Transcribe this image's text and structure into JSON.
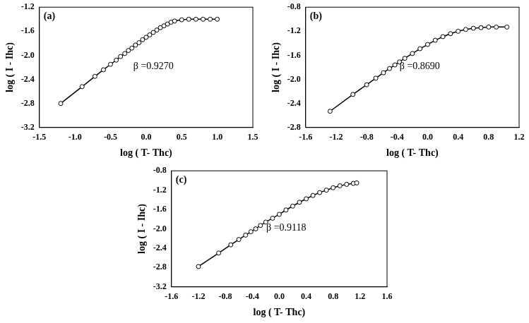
{
  "chart_data": [
    {
      "type": "scatter",
      "title": "(a)",
      "annotation": "β =0.9270",
      "x_label": "log ( T- Thc)",
      "y_label": "log ( I - Ihc)",
      "x": [
        -1.2,
        -0.9,
        -0.72,
        -0.6,
        -0.5,
        -0.42,
        -0.36,
        -0.3,
        -0.25,
        -0.2,
        -0.15,
        -0.1,
        -0.05,
        0.0,
        0.05,
        0.1,
        0.15,
        0.2,
        0.25,
        0.3,
        0.35,
        0.4,
        0.5,
        0.6,
        0.7,
        0.8,
        0.9,
        1.0
      ],
      "values": [
        -2.8,
        -2.52,
        -2.35,
        -2.24,
        -2.15,
        -2.08,
        -2.02,
        -1.97,
        -1.92,
        -1.88,
        -1.83,
        -1.79,
        -1.74,
        -1.7,
        -1.66,
        -1.62,
        -1.58,
        -1.54,
        -1.51,
        -1.48,
        -1.45,
        -1.43,
        -1.41,
        -1.4,
        -1.4,
        -1.4,
        -1.4,
        -1.4
      ],
      "color": "#000000",
      "marker": "circle",
      "line_style": "solid",
      "grid": false,
      "xlim": [
        -1.5,
        1.5
      ],
      "xticks": [
        -1.5,
        {
          "value": -1,
          "label": "-1.0"
        },
        -0.5,
        {
          "value": 0,
          "label": "0.0"
        },
        0.5,
        {
          "value": 1,
          "label": "1.0"
        },
        1.5
      ],
      "ylim": [
        -3.2,
        -1.2
      ],
      "yticks": [
        -3.2,
        -2.8,
        -2.4,
        {
          "value": -2,
          "label": "-2.0"
        },
        -1.6,
        -1.2
      ]
    },
    {
      "type": "scatter",
      "title": "(b)",
      "annotation": "β =0.8690",
      "x_label": "log ( T- Thc)",
      "y_label": "log ( I - Ihc)",
      "x": [
        -1.28,
        -0.98,
        -0.8,
        -0.68,
        -0.58,
        -0.5,
        -0.43,
        -0.37,
        -0.3,
        -0.2,
        -0.1,
        0.0,
        0.1,
        0.2,
        0.3,
        0.4,
        0.5,
        0.6,
        0.7,
        0.8,
        0.9,
        1.04
      ],
      "values": [
        -2.53,
        -2.25,
        -2.09,
        -1.98,
        -1.89,
        -1.82,
        -1.76,
        -1.71,
        -1.65,
        -1.57,
        -1.49,
        -1.42,
        -1.35,
        -1.29,
        -1.24,
        -1.2,
        -1.17,
        -1.15,
        -1.14,
        -1.13,
        -1.13,
        -1.13
      ],
      "color": "#000000",
      "marker": "circle",
      "line_style": "solid",
      "grid": false,
      "xlim": [
        -1.6,
        1.2
      ],
      "xticks": [
        -1.6,
        -1.2,
        -0.8,
        -0.4,
        {
          "value": 0,
          "label": "0.0"
        },
        0.4,
        0.8,
        1.2
      ],
      "ylim": [
        -2.8,
        -0.8
      ],
      "yticks": [
        -2.8,
        -2.4,
        {
          "value": -2,
          "label": "-2.0"
        },
        -1.6,
        -1.2,
        -0.8
      ]
    },
    {
      "type": "scatter",
      "title": "(c)",
      "annotation": "β =0.9118",
      "x_label": "log ( T- Thc)",
      "y_label": "log ( I - Ihc)",
      "x": [
        -1.2,
        -0.9,
        -0.72,
        -0.6,
        -0.5,
        -0.42,
        -0.35,
        -0.28,
        -0.2,
        -0.1,
        0.0,
        0.1,
        0.2,
        0.3,
        0.4,
        0.5,
        0.6,
        0.7,
        0.8,
        0.9,
        1.0,
        1.1,
        1.15
      ],
      "values": [
        -2.78,
        -2.5,
        -2.33,
        -2.22,
        -2.13,
        -2.06,
        -2.0,
        -1.93,
        -1.86,
        -1.78,
        -1.7,
        -1.61,
        -1.53,
        -1.45,
        -1.38,
        -1.31,
        -1.25,
        -1.2,
        -1.15,
        -1.11,
        -1.08,
        -1.06,
        -1.05
      ],
      "color": "#000000",
      "marker": "circle",
      "line_style": "solid",
      "grid": false,
      "xlim": [
        -1.6,
        1.6
      ],
      "xticks": [
        -1.6,
        -1.2,
        -0.8,
        -0.4,
        {
          "value": 0,
          "label": "0.0"
        },
        0.4,
        0.8,
        1.2,
        1.6
      ],
      "ylim": [
        -3.2,
        -0.8
      ],
      "yticks": [
        -3.2,
        -2.8,
        -2.4,
        {
          "value": -2,
          "label": "-2.0"
        },
        -1.6,
        -1.2,
        -0.8
      ]
    }
  ]
}
